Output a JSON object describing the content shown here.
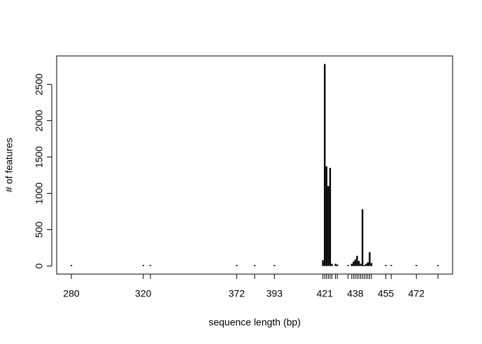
{
  "chart_data": {
    "type": "bar",
    "x_label": "sequence length (bp)",
    "y_label": "# of features",
    "x": [
      280,
      320,
      324,
      372,
      382,
      393,
      420,
      421,
      422,
      423,
      424,
      425,
      427,
      428,
      434,
      436,
      437,
      438,
      439,
      440,
      441,
      442,
      443,
      444,
      445,
      446,
      447,
      455,
      458,
      472,
      484
    ],
    "values": [
      1,
      1,
      1,
      1,
      1,
      1,
      80,
      2780,
      1370,
      1100,
      1350,
      30,
      30,
      20,
      5,
      30,
      60,
      90,
      140,
      70,
      30,
      780,
      5,
      30,
      50,
      190,
      40,
      1,
      1,
      1,
      1
    ],
    "color": "#000000",
    "xlim": [
      271.84,
      492.16
    ],
    "xticks": [
      280,
      320,
      372,
      393,
      421,
      438,
      455,
      472
    ],
    "ylim": [
      -111.2,
      2891.2
    ],
    "yticks": [
      0,
      500,
      1000,
      1500,
      2000,
      2500
    ]
  }
}
